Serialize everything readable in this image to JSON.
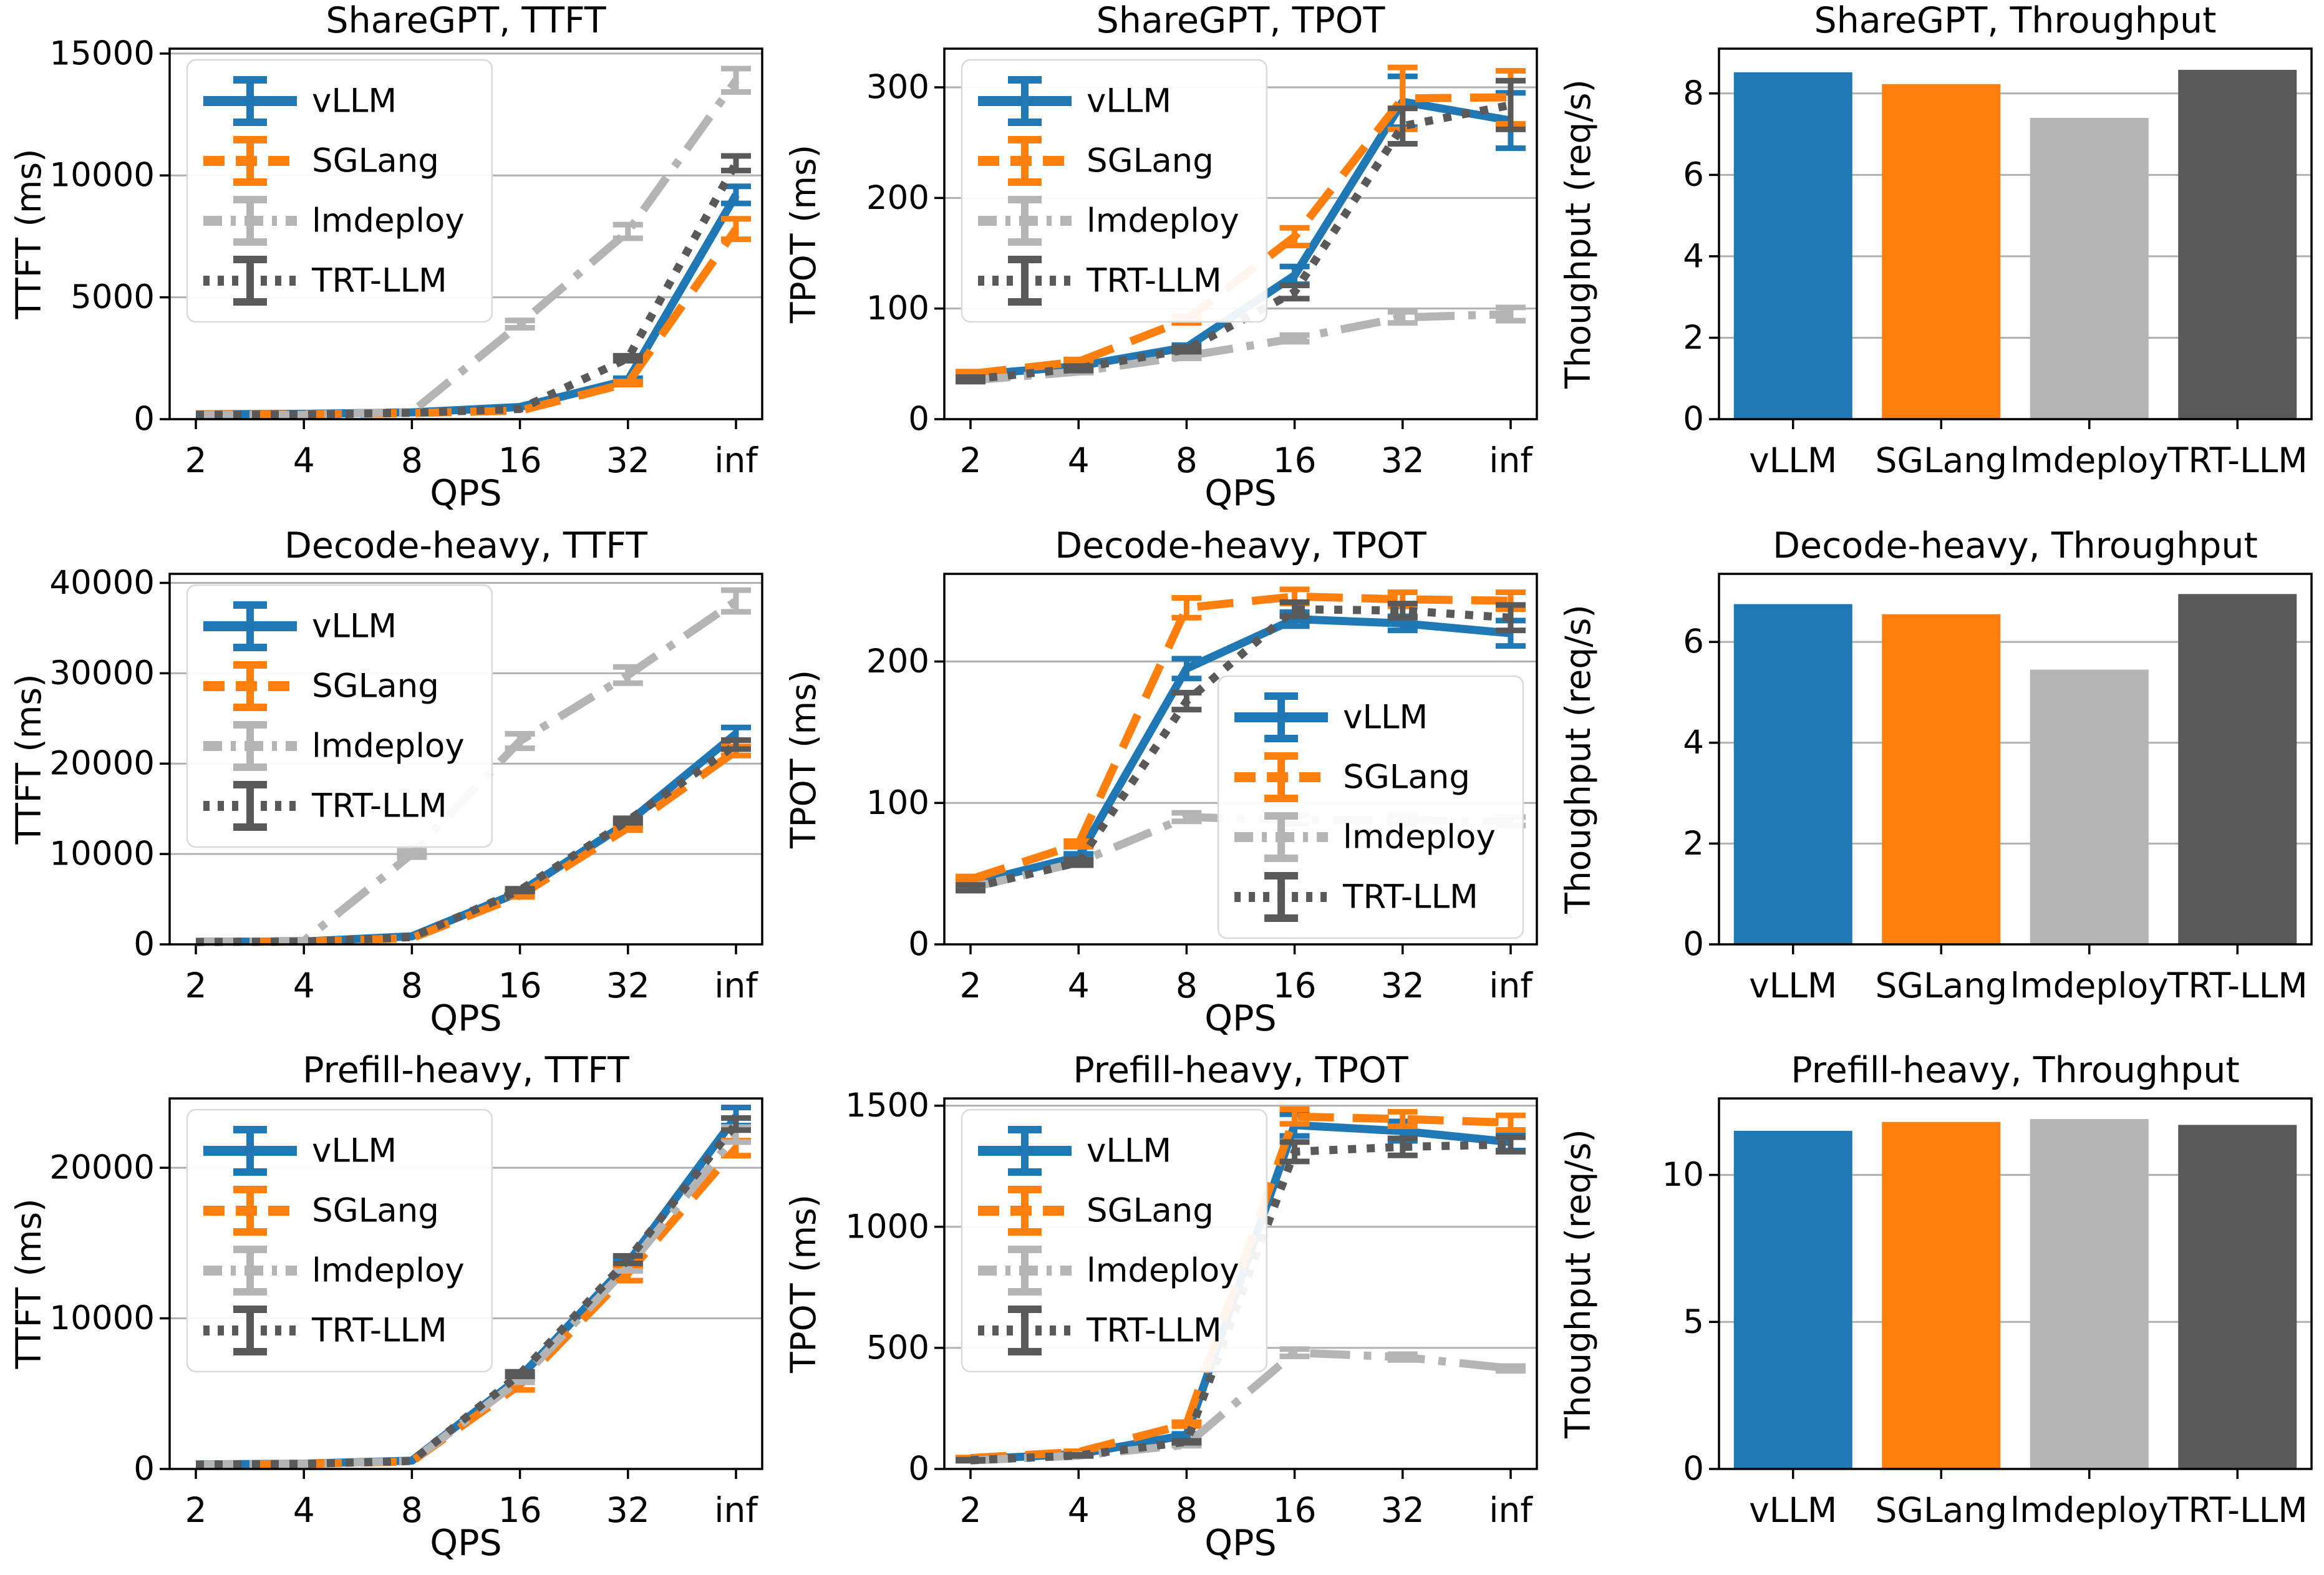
{
  "colors": {
    "vLLM": "#1f77b4",
    "SGLang": "#ff7f0e",
    "lmdeploy": "#b4b4b4",
    "TRT-LLM": "#595959",
    "grid": "#b0b0b0",
    "spine": "#000000",
    "legend_border": "#d9d9d9"
  },
  "frameworks": [
    "vLLM",
    "SGLang",
    "lmdeploy",
    "TRT-LLM"
  ],
  "line_style_by_framework": {
    "vLLM": "solid",
    "SGLang": "dashed",
    "lmdeploy": "dashdot",
    "TRT-LLM": "dotted"
  },
  "chart_data": [
    {
      "type": "line",
      "title": "ShareGPT, TTFT",
      "xlabel": "QPS",
      "ylabel": "TTFT (ms)",
      "x_ticklabels": [
        "2",
        "4",
        "8",
        "16",
        "32",
        "inf"
      ],
      "ylim": [
        0,
        15200
      ],
      "yticks": [
        0,
        5000,
        10000,
        15000
      ],
      "grid": true,
      "legend": {
        "show": true,
        "position": "upper-left"
      },
      "series": [
        {
          "name": "vLLM",
          "values": [
            200,
            220,
            280,
            500,
            1600,
            9200
          ],
          "err": [
            0,
            0,
            0,
            0,
            80,
            350
          ]
        },
        {
          "name": "SGLang",
          "values": [
            190,
            200,
            250,
            350,
            1480,
            7800
          ],
          "err": [
            0,
            0,
            0,
            0,
            60,
            420
          ]
        },
        {
          "name": "lmdeploy",
          "values": [
            170,
            180,
            300,
            3900,
            7700,
            13900
          ],
          "err": [
            0,
            0,
            0,
            150,
            280,
            480
          ]
        },
        {
          "name": "TRT-LLM",
          "values": [
            180,
            190,
            260,
            420,
            2500,
            10500
          ],
          "err": [
            0,
            0,
            0,
            0,
            100,
            300
          ]
        }
      ]
    },
    {
      "type": "line",
      "title": "ShareGPT, TPOT",
      "xlabel": "QPS",
      "ylabel": "TPOT (ms)",
      "x_ticklabels": [
        "2",
        "4",
        "8",
        "16",
        "32",
        "inf"
      ],
      "ylim": [
        0,
        335
      ],
      "yticks": [
        0,
        100,
        200,
        300
      ],
      "grid": true,
      "legend": {
        "show": true,
        "position": "upper-left"
      },
      "series": [
        {
          "name": "vLLM",
          "values": [
            40,
            48,
            65,
            130,
            287,
            270
          ],
          "err": [
            2,
            2,
            2,
            8,
            23,
            25
          ]
        },
        {
          "name": "SGLang",
          "values": [
            41,
            52,
            90,
            165,
            290,
            291
          ],
          "err": [
            2,
            2,
            3,
            8,
            28,
            24
          ]
        },
        {
          "name": "lmdeploy",
          "values": [
            35,
            43,
            57,
            73,
            92,
            95
          ],
          "err": [
            1,
            1,
            2,
            3,
            5,
            6
          ]
        },
        {
          "name": "TRT-LLM",
          "values": [
            36,
            46,
            63,
            115,
            265,
            284
          ],
          "err": [
            2,
            2,
            2,
            6,
            16,
            22
          ]
        }
      ]
    },
    {
      "type": "bar",
      "title": "ShareGPT, Throughput",
      "ylabel": "Thoughput (req/s)",
      "categories": [
        "vLLM",
        "SGLang",
        "lmdeploy",
        "TRT-LLM"
      ],
      "values": [
        8.52,
        8.23,
        7.4,
        8.58
      ],
      "ylim": [
        0,
        9.1
      ],
      "yticks": [
        0,
        2,
        4,
        6,
        8
      ],
      "grid": true
    },
    {
      "type": "line",
      "title": "Decode-heavy, TTFT",
      "xlabel": "QPS",
      "ylabel": "TTFT (ms)",
      "x_ticklabels": [
        "2",
        "4",
        "8",
        "16",
        "32",
        "inf"
      ],
      "ylim": [
        0,
        41000
      ],
      "yticks": [
        0,
        10000,
        20000,
        30000,
        40000
      ],
      "grid": true,
      "legend": {
        "show": true,
        "position": "upper-left"
      },
      "series": [
        {
          "name": "vLLM",
          "values": [
            300,
            320,
            900,
            5800,
            13500,
            23300
          ],
          "err": [
            0,
            0,
            0,
            150,
            250,
            700
          ]
        },
        {
          "name": "SGLang",
          "values": [
            280,
            300,
            700,
            5400,
            12900,
            21400
          ],
          "err": [
            0,
            0,
            0,
            150,
            250,
            500
          ]
        },
        {
          "name": "lmdeploy",
          "values": [
            250,
            400,
            10000,
            22500,
            29800,
            38000
          ],
          "err": [
            0,
            0,
            350,
            800,
            900,
            1200
          ]
        },
        {
          "name": "TRT-LLM",
          "values": [
            260,
            310,
            800,
            6000,
            13700,
            22100
          ],
          "err": [
            0,
            0,
            0,
            150,
            250,
            500
          ]
        }
      ]
    },
    {
      "type": "line",
      "title": "Decode-heavy, TPOT",
      "xlabel": "QPS",
      "ylabel": "TPOT (ms)",
      "x_ticklabels": [
        "2",
        "4",
        "8",
        "16",
        "32",
        "inf"
      ],
      "ylim": [
        0,
        262
      ],
      "yticks": [
        0,
        100,
        200
      ],
      "grid": true,
      "legend": {
        "show": true,
        "position": "center-right"
      },
      "series": [
        {
          "name": "vLLM",
          "values": [
            43,
            62,
            195,
            230,
            227,
            220
          ],
          "err": [
            2,
            2,
            7,
            5,
            5,
            9
          ]
        },
        {
          "name": "SGLang",
          "values": [
            46,
            71,
            238,
            246,
            244,
            243
          ],
          "err": [
            2,
            2,
            7,
            5,
            5,
            6
          ]
        },
        {
          "name": "lmdeploy",
          "values": [
            40,
            58,
            90,
            88,
            88,
            87
          ],
          "err": [
            1,
            2,
            3,
            3,
            3,
            3
          ]
        },
        {
          "name": "TRT-LLM",
          "values": [
            40,
            58,
            172,
            237,
            236,
            231
          ],
          "err": [
            2,
            2,
            6,
            5,
            5,
            9
          ]
        }
      ]
    },
    {
      "type": "bar",
      "title": "Decode-heavy, Throughput",
      "ylabel": "Thoughput (req/s)",
      "categories": [
        "vLLM",
        "SGLang",
        "lmdeploy",
        "TRT-LLM"
      ],
      "values": [
        6.75,
        6.55,
        5.45,
        6.95
      ],
      "ylim": [
        0,
        7.35
      ],
      "yticks": [
        0,
        2,
        4,
        6
      ],
      "grid": true
    },
    {
      "type": "line",
      "title": "Prefill-heavy, TTFT",
      "xlabel": "QPS",
      "ylabel": "TTFT (ms)",
      "x_ticklabels": [
        "2",
        "4",
        "8",
        "16",
        "32",
        "inf"
      ],
      "ylim": [
        0,
        24600
      ],
      "yticks": [
        0,
        10000,
        20000
      ],
      "grid": true,
      "legend": {
        "show": true,
        "position": "upper-left"
      },
      "series": [
        {
          "name": "vLLM",
          "values": [
            300,
            350,
            550,
            6100,
            13700,
            23400
          ],
          "err": [
            0,
            0,
            0,
            120,
            250,
            600
          ]
        },
        {
          "name": "SGLang",
          "values": [
            280,
            330,
            500,
            5600,
            13000,
            21300
          ],
          "err": [
            0,
            0,
            0,
            350,
            500,
            500
          ]
        },
        {
          "name": "lmdeploy",
          "values": [
            290,
            340,
            520,
            5900,
            13400,
            22200
          ],
          "err": [
            0,
            0,
            0,
            150,
            250,
            500
          ]
        },
        {
          "name": "TRT-LLM",
          "values": [
            290,
            340,
            530,
            6300,
            13900,
            22900
          ],
          "err": [
            0,
            0,
            0,
            150,
            250,
            400
          ]
        }
      ]
    },
    {
      "type": "line",
      "title": "Prefill-heavy, TPOT",
      "xlabel": "QPS",
      "ylabel": "TPOT (ms)",
      "x_ticklabels": [
        "2",
        "4",
        "8",
        "16",
        "32",
        "inf"
      ],
      "ylim": [
        0,
        1530
      ],
      "yticks": [
        0,
        500,
        1000,
        1500
      ],
      "grid": true,
      "legend": {
        "show": true,
        "position": "upper-left"
      },
      "series": [
        {
          "name": "vLLM",
          "values": [
            40,
            62,
            140,
            1420,
            1395,
            1350
          ],
          "err": [
            2,
            2,
            5,
            45,
            40,
            35
          ]
        },
        {
          "name": "SGLang",
          "values": [
            45,
            70,
            185,
            1455,
            1445,
            1430
          ],
          "err": [
            2,
            3,
            8,
            30,
            30,
            30
          ]
        },
        {
          "name": "lmdeploy",
          "values": [
            35,
            55,
            100,
            480,
            462,
            415
          ],
          "err": [
            1,
            2,
            4,
            15,
            12,
            10
          ]
        },
        {
          "name": "TRT-LLM",
          "values": [
            36,
            56,
            112,
            1310,
            1330,
            1340
          ],
          "err": [
            2,
            2,
            4,
            40,
            35,
            30
          ]
        }
      ]
    },
    {
      "type": "bar",
      "title": "Prefill-heavy, Throughput",
      "ylabel": "Thoughput (req/s)",
      "categories": [
        "vLLM",
        "SGLang",
        "lmdeploy",
        "TRT-LLM"
      ],
      "values": [
        11.5,
        11.8,
        11.9,
        11.7
      ],
      "ylim": [
        0,
        12.6
      ],
      "yticks": [
        0,
        5,
        10
      ],
      "grid": true
    }
  ]
}
